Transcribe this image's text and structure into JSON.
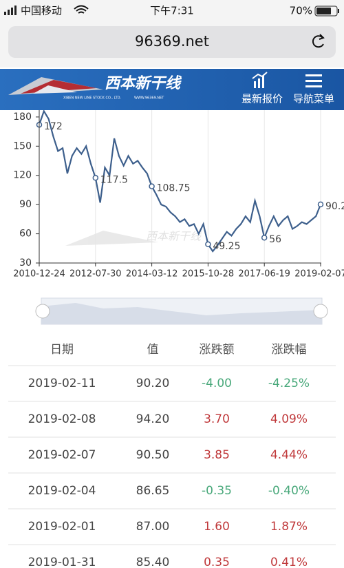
{
  "status_bar": {
    "carrier": "中国移动",
    "time": "下午7:31",
    "battery": "70%"
  },
  "browser": {
    "url": "96369.net"
  },
  "header": {
    "logo": "西本新干线",
    "logo_sub": "XIBEN NEW LINE STOCK CO., LTD.",
    "logo_site": "WWW.96369.NET",
    "nav": [
      "最新报价",
      "导航菜单"
    ]
  },
  "chart_data": {
    "type": "line",
    "color": "#3d5f8c",
    "categories": [
      "2010-12-24",
      null,
      null,
      null,
      null,
      null,
      null,
      null,
      null,
      null,
      null,
      null,
      "2012-07-30",
      null,
      null,
      null,
      null,
      null,
      null,
      null,
      null,
      null,
      null,
      null,
      "2014-03-12",
      null,
      null,
      null,
      null,
      null,
      null,
      null,
      null,
      null,
      null,
      null,
      "2015-10-28",
      null,
      null,
      null,
      null,
      null,
      null,
      null,
      null,
      null,
      null,
      null,
      "2017-06-19",
      null,
      null,
      null,
      null,
      null,
      null,
      null,
      null,
      null,
      null,
      null,
      "2019-02-07"
    ],
    "values": [
      172,
      186,
      178,
      160,
      145,
      148,
      122,
      140,
      148,
      142,
      150,
      132,
      117.5,
      92,
      128,
      120,
      158,
      140,
      130,
      140,
      132,
      135,
      128,
      122,
      108.75,
      100,
      90,
      88,
      82,
      78,
      72,
      75,
      68,
      70,
      60,
      70,
      49.25,
      42,
      48,
      55,
      62,
      58,
      65,
      70,
      78,
      72,
      94,
      78,
      56,
      68,
      78,
      68,
      74,
      78,
      65,
      68,
      72,
      70,
      74,
      78,
      90.2
    ],
    "value_labels": [
      "172",
      null,
      null,
      null,
      null,
      null,
      null,
      null,
      null,
      null,
      null,
      null,
      "117.5",
      null,
      null,
      null,
      null,
      null,
      null,
      null,
      null,
      null,
      null,
      null,
      "108.75",
      null,
      null,
      null,
      null,
      null,
      null,
      null,
      null,
      null,
      null,
      null,
      "49.25",
      null,
      null,
      null,
      null,
      null,
      null,
      null,
      null,
      null,
      null,
      null,
      "56",
      null,
      null,
      null,
      null,
      null,
      null,
      null,
      null,
      null,
      null,
      null,
      "90.2"
    ],
    "ylim": [
      30,
      187
    ],
    "yticks": [
      30,
      60,
      90,
      120,
      150,
      180
    ],
    "grid": true
  },
  "table": {
    "columns": [
      "日期",
      "值",
      "涨跌额",
      "涨跌幅"
    ],
    "rows": [
      [
        "2019-02-11",
        "90.20",
        "-4.00",
        "-4.25%"
      ],
      [
        "2019-02-08",
        "94.20",
        "3.70",
        "4.09%"
      ],
      [
        "2019-02-07",
        "90.50",
        "3.85",
        "4.44%"
      ],
      [
        "2019-02-04",
        "86.65",
        "-0.35",
        "-0.40%"
      ],
      [
        "2019-02-01",
        "87.00",
        "1.60",
        "1.87%"
      ],
      [
        "2019-01-31",
        "85.40",
        "0.35",
        "0.41%"
      ]
    ]
  }
}
